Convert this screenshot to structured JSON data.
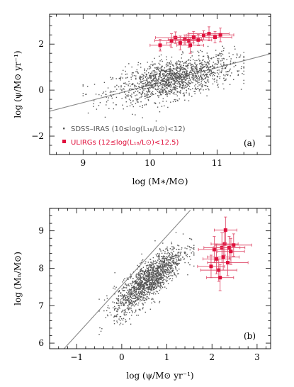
{
  "chart_data": [
    {
      "panel": "(a)",
      "type": "scatter",
      "xlabel": "log (M∗/M⊙)",
      "ylabel": "log (ψ/M⊙ yr⁻¹)",
      "xlim": [
        8.5,
        11.8
      ],
      "ylim": [
        -2.8,
        3.3
      ],
      "xticks": [
        9,
        10,
        11
      ],
      "yticks": [
        -2,
        0,
        2
      ],
      "xtick_labels": [
        "9",
        "10",
        "11"
      ],
      "ytick_labels": [
        "−2",
        "0",
        "2"
      ],
      "fit_line": {
        "x": [
          8.5,
          11.8
        ],
        "y": [
          -0.92,
          1.58
        ]
      },
      "legend": {
        "placement": "bottom-left",
        "entries": [
          {
            "label": "SDSS–IRAS (10≤log(L₁₈/L⊙)<12)",
            "color": "#555555",
            "marker": "dot"
          },
          {
            "label": "ULIRGs (12≤log(L₁₈/L⊙)<12.5)",
            "color": "#e0103c",
            "marker": "square"
          }
        ]
      },
      "series": [
        {
          "name": "SDSS–IRAS (10≤log(L₁₈/L⊙)<12)",
          "cloud": {
            "n": 1500,
            "x_mean": 10.35,
            "x_sd": 0.45,
            "slope": 0.6,
            "y_sd": 0.42,
            "x_range": [
              9.0,
              11.4
            ]
          }
        },
        {
          "name": "ULIRGs (12≤log(L₁₈/L⊙)<12.5)",
          "points": [
            {
              "x": 10.15,
              "y": 1.95,
              "xerr": 0.15,
              "yerr": 0.25
            },
            {
              "x": 10.32,
              "y": 2.15,
              "xerr": 0.25,
              "yerr": 0.3
            },
            {
              "x": 10.38,
              "y": 2.28,
              "xerr": 0.3,
              "yerr": 0.25
            },
            {
              "x": 10.45,
              "y": 2.05,
              "xerr": 0.2,
              "yerr": 0.3
            },
            {
              "x": 10.52,
              "y": 2.2,
              "xerr": 0.25,
              "yerr": 0.2
            },
            {
              "x": 10.58,
              "y": 2.15,
              "xerr": 0.2,
              "yerr": 0.3
            },
            {
              "x": 10.65,
              "y": 2.3,
              "xerr": 0.3,
              "yerr": 0.25
            },
            {
              "x": 10.72,
              "y": 2.18,
              "xerr": 0.2,
              "yerr": 0.25
            },
            {
              "x": 10.8,
              "y": 2.38,
              "xerr": 0.25,
              "yerr": 0.2
            },
            {
              "x": 10.88,
              "y": 2.45,
              "xerr": 0.3,
              "yerr": 0.3
            },
            {
              "x": 10.97,
              "y": 2.3,
              "xerr": 0.25,
              "yerr": 0.25
            },
            {
              "x": 11.05,
              "y": 2.4,
              "xerr": 0.2,
              "yerr": 0.3
            },
            {
              "x": 10.6,
              "y": 1.95,
              "xerr": 0.2,
              "yerr": 0.35
            }
          ]
        }
      ]
    },
    {
      "panel": "(b)",
      "type": "scatter",
      "xlabel": "log (ψ/M⊙ yr⁻¹)",
      "ylabel": "log (Mₙ/M⊙)",
      "xlim": [
        -1.6,
        3.3
      ],
      "ylim": [
        5.85,
        9.6
      ],
      "xticks": [
        -1,
        0,
        1,
        2,
        3
      ],
      "yticks": [
        6,
        7,
        8,
        9
      ],
      "xtick_labels": [
        "−1",
        "0",
        "1",
        "2",
        "3"
      ],
      "ytick_labels": [
        "6",
        "7",
        "8",
        "9"
      ],
      "fit_line": {
        "x": [
          -1.28,
          1.52
        ],
        "y": [
          5.85,
          9.55
        ]
      },
      "series": [
        {
          "name": "SDSS–IRAS",
          "cloud": {
            "n": 1500,
            "x_mean": 0.6,
            "x_sd": 0.38,
            "y_intercept": 7.1,
            "slope": 0.95,
            "y_sd": 0.26,
            "x_range": [
              -0.5,
              1.6
            ]
          }
        },
        {
          "name": "ULIRGs",
          "points": [
            {
              "x": 1.98,
              "y": 8.05,
              "xerr": 0.3,
              "yerr": 0.3
            },
            {
              "x": 2.05,
              "y": 8.5,
              "xerr": 0.35,
              "yerr": 0.35
            },
            {
              "x": 2.1,
              "y": 8.25,
              "xerr": 0.3,
              "yerr": 0.4
            },
            {
              "x": 2.15,
              "y": 7.95,
              "xerr": 0.4,
              "yerr": 0.3
            },
            {
              "x": 2.18,
              "y": 7.75,
              "xerr": 0.3,
              "yerr": 0.35
            },
            {
              "x": 2.22,
              "y": 8.55,
              "xerr": 0.4,
              "yerr": 0.4
            },
            {
              "x": 2.25,
              "y": 8.3,
              "xerr": 0.35,
              "yerr": 0.35
            },
            {
              "x": 2.28,
              "y": 8.65,
              "xerr": 0.3,
              "yerr": 0.3
            },
            {
              "x": 2.3,
              "y": 9.02,
              "xerr": 0.25,
              "yerr": 0.35
            },
            {
              "x": 2.35,
              "y": 8.15,
              "xerr": 0.45,
              "yerr": 0.35
            },
            {
              "x": 2.38,
              "y": 8.55,
              "xerr": 0.35,
              "yerr": 0.3
            },
            {
              "x": 2.42,
              "y": 8.45,
              "xerr": 0.3,
              "yerr": 0.35
            },
            {
              "x": 2.48,
              "y": 8.62,
              "xerr": 0.4,
              "yerr": 0.3
            }
          ]
        }
      ]
    }
  ]
}
